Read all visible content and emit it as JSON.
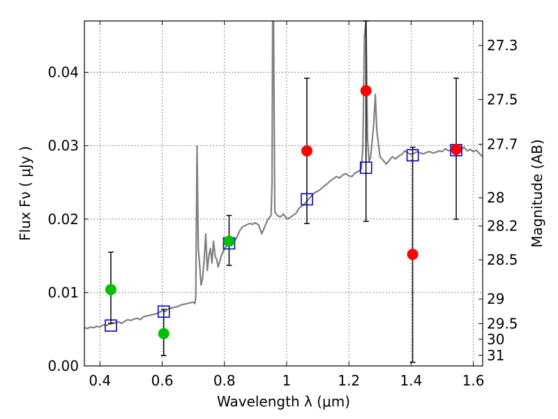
{
  "chart_data": {
    "type": "scatter",
    "title": "",
    "xlabel": "Wavelength  λ (μm)",
    "ylabel": "Flux  Fν  ( μJy )",
    "y2label": "Magnitude (AB)",
    "xlim": [
      0.35,
      1.63
    ],
    "ylim": [
      0.0,
      0.047
    ],
    "grid": true,
    "x_ticks": [
      0.4,
      0.6,
      0.8,
      1.0,
      1.2,
      1.4,
      1.6
    ],
    "x_tick_labels": [
      "0.4",
      "0.6",
      "0.8",
      "1",
      "1.2",
      "1.4",
      "1.6"
    ],
    "y_ticks": [
      0.0,
      0.01,
      0.02,
      0.03,
      0.04
    ],
    "y_tick_labels": [
      "0.00",
      "0.01",
      "0.02",
      "0.03",
      "0.04"
    ],
    "y2_ticks": [
      27.3,
      27.5,
      27.7,
      28,
      28.2,
      28.5,
      29,
      29.5,
      30,
      31
    ],
    "y2_tick_labels": [
      "27.3",
      "27.5",
      "27.7",
      "28",
      "28.2",
      "28.5",
      "29",
      "29.5",
      "30",
      "31"
    ],
    "colors": {
      "model": "#808080",
      "green": "#00c000",
      "red": "#ff0000",
      "model_points": "#0000cc",
      "errorbar": "#000000"
    },
    "model_spectrum": [
      [
        0.35,
        0.0052
      ],
      [
        0.36,
        0.0051
      ],
      [
        0.37,
        0.0053
      ],
      [
        0.38,
        0.0052
      ],
      [
        0.39,
        0.0054
      ],
      [
        0.4,
        0.0053
      ],
      [
        0.41,
        0.0056
      ],
      [
        0.42,
        0.0055
      ],
      [
        0.43,
        0.0057
      ],
      [
        0.44,
        0.0058
      ],
      [
        0.45,
        0.0059
      ],
      [
        0.46,
        0.006
      ],
      [
        0.47,
        0.0058
      ],
      [
        0.48,
        0.0061
      ],
      [
        0.49,
        0.0063
      ],
      [
        0.5,
        0.0062
      ],
      [
        0.51,
        0.0064
      ],
      [
        0.52,
        0.0065
      ],
      [
        0.53,
        0.0063
      ],
      [
        0.54,
        0.0067
      ],
      [
        0.55,
        0.0068
      ],
      [
        0.56,
        0.0069
      ],
      [
        0.57,
        0.007
      ],
      [
        0.58,
        0.0071
      ],
      [
        0.59,
        0.0073
      ],
      [
        0.6,
        0.0075
      ],
      [
        0.61,
        0.0074
      ],
      [
        0.62,
        0.0078
      ],
      [
        0.63,
        0.0079
      ],
      [
        0.64,
        0.008
      ],
      [
        0.65,
        0.0081
      ],
      [
        0.66,
        0.0083
      ],
      [
        0.67,
        0.0084
      ],
      [
        0.68,
        0.0085
      ],
      [
        0.69,
        0.0086
      ],
      [
        0.7,
        0.0087
      ],
      [
        0.705,
        0.0085
      ],
      [
        0.708,
        0.0095
      ],
      [
        0.712,
        0.03
      ],
      [
        0.716,
        0.016
      ],
      [
        0.72,
        0.014
      ],
      [
        0.725,
        0.011
      ],
      [
        0.73,
        0.012
      ],
      [
        0.735,
        0.0145
      ],
      [
        0.74,
        0.018
      ],
      [
        0.745,
        0.013
      ],
      [
        0.75,
        0.015
      ],
      [
        0.755,
        0.016
      ],
      [
        0.76,
        0.014
      ],
      [
        0.765,
        0.017
      ],
      [
        0.77,
        0.015
      ],
      [
        0.775,
        0.0145
      ],
      [
        0.78,
        0.0135
      ],
      [
        0.79,
        0.015
      ],
      [
        0.8,
        0.016
      ],
      [
        0.81,
        0.0165
      ],
      [
        0.82,
        0.017
      ],
      [
        0.83,
        0.0168
      ],
      [
        0.84,
        0.0175
      ],
      [
        0.85,
        0.0185
      ],
      [
        0.86,
        0.019
      ],
      [
        0.87,
        0.0192
      ],
      [
        0.88,
        0.0194
      ],
      [
        0.89,
        0.0193
      ],
      [
        0.9,
        0.0195
      ],
      [
        0.91,
        0.0192
      ],
      [
        0.92,
        0.018
      ],
      [
        0.93,
        0.019
      ],
      [
        0.94,
        0.02
      ],
      [
        0.95,
        0.0205
      ],
      [
        0.953,
        0.025
      ],
      [
        0.955,
        0.047
      ],
      [
        0.958,
        0.047
      ],
      [
        0.962,
        0.021
      ],
      [
        0.97,
        0.0205
      ],
      [
        0.98,
        0.0203
      ],
      [
        0.99,
        0.0207
      ],
      [
        1.0,
        0.02
      ],
      [
        1.01,
        0.0202
      ],
      [
        1.02,
        0.0205
      ],
      [
        1.03,
        0.0208
      ],
      [
        1.04,
        0.0215
      ],
      [
        1.05,
        0.0218
      ],
      [
        1.06,
        0.0222
      ],
      [
        1.07,
        0.0227
      ],
      [
        1.08,
        0.0232
      ],
      [
        1.09,
        0.0236
      ],
      [
        1.1,
        0.0238
      ],
      [
        1.11,
        0.0241
      ],
      [
        1.12,
        0.0245
      ],
      [
        1.13,
        0.0248
      ],
      [
        1.14,
        0.0252
      ],
      [
        1.15,
        0.0255
      ],
      [
        1.16,
        0.0258
      ],
      [
        1.17,
        0.0256
      ],
      [
        1.18,
        0.026
      ],
      [
        1.19,
        0.0262
      ],
      [
        1.2,
        0.0259
      ],
      [
        1.21,
        0.0258
      ],
      [
        1.22,
        0.0263
      ],
      [
        1.23,
        0.0265
      ],
      [
        1.24,
        0.0268
      ],
      [
        1.245,
        0.03
      ],
      [
        1.25,
        0.045
      ],
      [
        1.255,
        0.047
      ],
      [
        1.26,
        0.031
      ],
      [
        1.265,
        0.0278
      ],
      [
        1.27,
        0.0285
      ],
      [
        1.28,
        0.033
      ],
      [
        1.285,
        0.037
      ],
      [
        1.29,
        0.032
      ],
      [
        1.3,
        0.0285
      ],
      [
        1.31,
        0.028
      ],
      [
        1.32,
        0.0275
      ],
      [
        1.33,
        0.028
      ],
      [
        1.34,
        0.0285
      ],
      [
        1.35,
        0.0282
      ],
      [
        1.36,
        0.0286
      ],
      [
        1.37,
        0.0288
      ],
      [
        1.38,
        0.0293
      ],
      [
        1.39,
        0.029
      ],
      [
        1.4,
        0.0288
      ],
      [
        1.41,
        0.029
      ],
      [
        1.42,
        0.0292
      ],
      [
        1.43,
        0.029
      ],
      [
        1.44,
        0.0289
      ],
      [
        1.45,
        0.0291
      ],
      [
        1.46,
        0.0292
      ],
      [
        1.47,
        0.029
      ],
      [
        1.48,
        0.0291
      ],
      [
        1.49,
        0.0293
      ],
      [
        1.5,
        0.0292
      ],
      [
        1.51,
        0.0296
      ],
      [
        1.52,
        0.0293
      ],
      [
        1.53,
        0.0295
      ],
      [
        1.54,
        0.0297
      ],
      [
        1.55,
        0.0296
      ],
      [
        1.56,
        0.0294
      ],
      [
        1.57,
        0.0298
      ],
      [
        1.58,
        0.0293
      ],
      [
        1.59,
        0.0295
      ],
      [
        1.6,
        0.0292
      ],
      [
        1.61,
        0.0294
      ],
      [
        1.62,
        0.0289
      ],
      [
        1.63,
        0.0285
      ]
    ],
    "model_points": [
      {
        "x": 0.435,
        "y": 0.0055
      },
      {
        "x": 0.605,
        "y": 0.0074
      },
      {
        "x": 0.815,
        "y": 0.0167
      },
      {
        "x": 1.065,
        "y": 0.0227
      },
      {
        "x": 1.255,
        "y": 0.027
      },
      {
        "x": 1.405,
        "y": 0.0287
      },
      {
        "x": 1.545,
        "y": 0.0294
      }
    ],
    "observed_points": [
      {
        "x": 0.435,
        "y": 0.0104,
        "ylo": 0.0058,
        "yhi": 0.0155,
        "color": "green"
      },
      {
        "x": 0.605,
        "y": 0.0044,
        "ylo": 0.0014,
        "yhi": 0.0077,
        "color": "green"
      },
      {
        "x": 0.815,
        "y": 0.017,
        "ylo": 0.0137,
        "yhi": 0.0205,
        "color": "green"
      },
      {
        "x": 1.065,
        "y": 0.0293,
        "ylo": 0.0194,
        "yhi": 0.0392,
        "color": "red"
      },
      {
        "x": 1.255,
        "y": 0.0375,
        "ylo": 0.0197,
        "yhi": 0.047,
        "color": "red"
      },
      {
        "x": 1.405,
        "y": 0.0152,
        "ylo": 0.0005,
        "yhi": 0.0298,
        "color": "red"
      },
      {
        "x": 1.545,
        "y": 0.0295,
        "ylo": 0.02,
        "yhi": 0.0392,
        "color": "red"
      }
    ]
  }
}
